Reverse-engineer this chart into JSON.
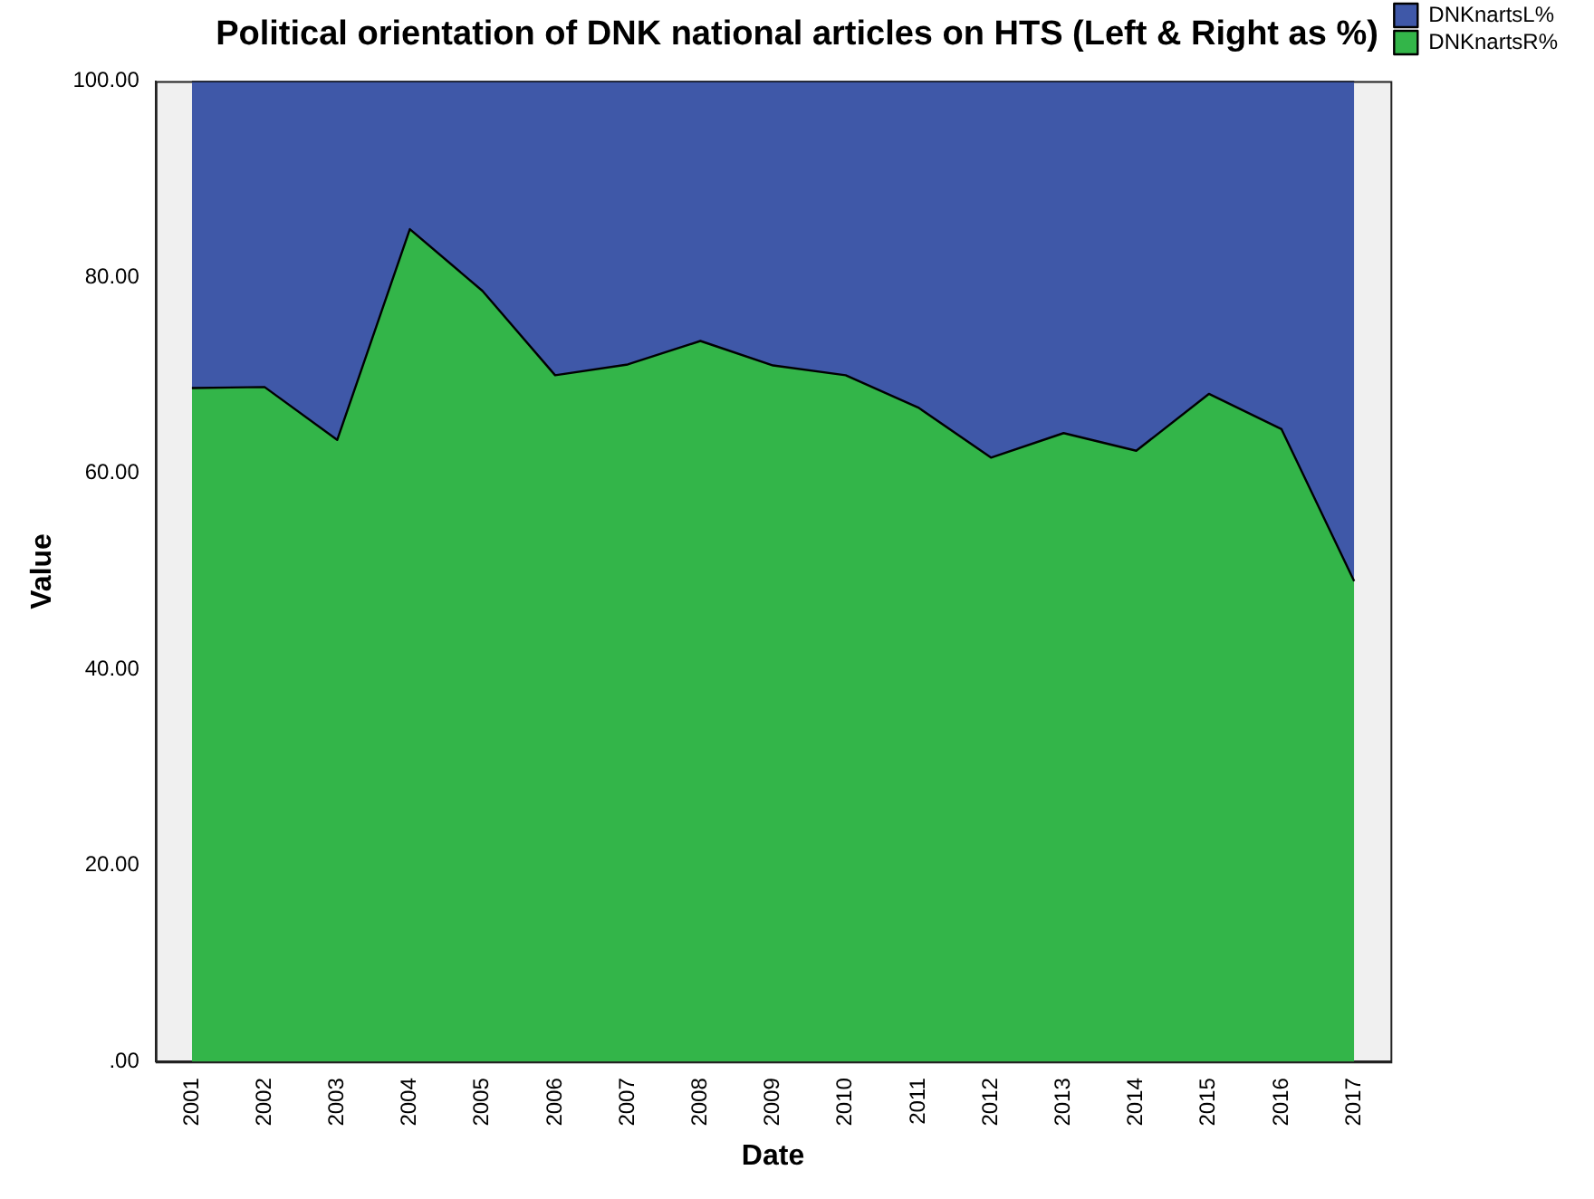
{
  "chart_data": {
    "type": "area",
    "title": "Political orientation of DNK national articles on HTS (Left & Right as %)",
    "xlabel": "Date",
    "ylabel": "Value",
    "categories": [
      "2001",
      "2002",
      "2003",
      "2004",
      "2005",
      "2006",
      "2007",
      "2008",
      "2009",
      "2010",
      "2011",
      "2012",
      "2013",
      "2014",
      "2015",
      "2016",
      "2017"
    ],
    "stacked": true,
    "series": [
      {
        "name": "DNKnartsR%",
        "color": "#33b549",
        "values": [
          68.7,
          68.8,
          63.4,
          84.9,
          78.6,
          70.0,
          71.1,
          73.5,
          71.0,
          70.0,
          66.7,
          61.6,
          64.1,
          62.3,
          68.1,
          64.5,
          49.0
        ]
      },
      {
        "name": "DNKnartsL%",
        "color": "#3f58a8",
        "values": [
          31.3,
          31.2,
          36.6,
          15.1,
          21.4,
          30.0,
          28.9,
          26.5,
          29.0,
          30.0,
          33.3,
          38.4,
          35.9,
          37.7,
          31.9,
          35.5,
          51.0
        ]
      }
    ],
    "ylim": [
      0,
      100
    ],
    "yticks": [
      {
        "value": 0,
        "label": ".00"
      },
      {
        "value": 20,
        "label": "20.00"
      },
      {
        "value": 40,
        "label": "40.00"
      },
      {
        "value": 60,
        "label": "60.00"
      },
      {
        "value": 80,
        "label": "80.00"
      },
      {
        "value": 100,
        "label": "100.00"
      }
    ],
    "grid": false,
    "legend": "top right"
  }
}
